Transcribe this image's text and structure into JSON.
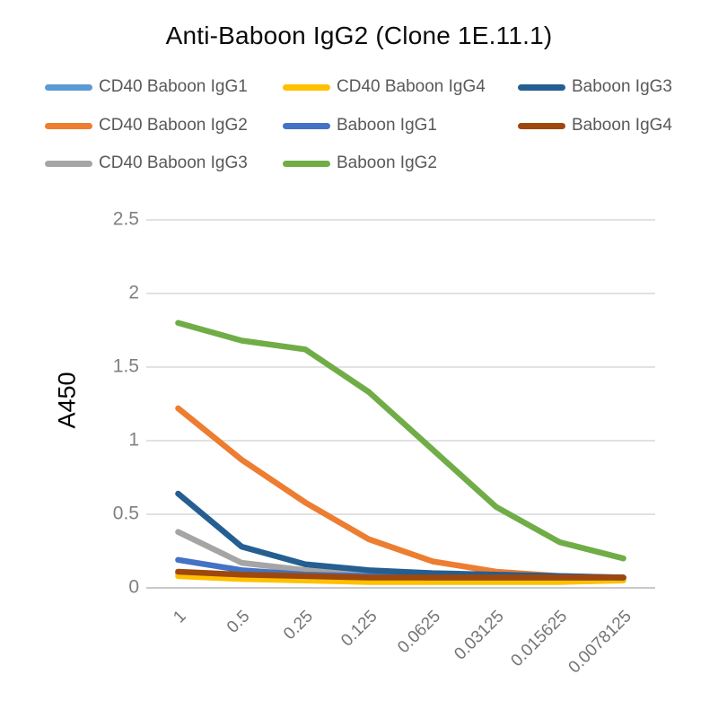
{
  "chart_data": {
    "type": "line",
    "title": "Anti-Baboon IgG2 (Clone 1E.11.1)",
    "xlabel": "",
    "ylabel": "A450",
    "ylim": [
      0,
      2.5
    ],
    "y_ticks": [
      0,
      0.5,
      1,
      1.5,
      2,
      2.5
    ],
    "y_tick_labels": [
      "0",
      "0.5",
      "1",
      "1.5",
      "2",
      "2.5"
    ],
    "categories": [
      "1",
      "0.5",
      "0.25",
      "0.125",
      "0.0625",
      "0.03125",
      "0.015625",
      "0.0078125"
    ],
    "grid": "horizontal",
    "legend_position": "top",
    "legend_columns": 3,
    "series": [
      {
        "name": "CD40 Baboon IgG1",
        "color": "#5B9BD5",
        "values": [
          0.1,
          0.08,
          0.07,
          0.06,
          0.06,
          0.06,
          0.06,
          0.06
        ]
      },
      {
        "name": "CD40 Baboon IgG2",
        "color": "#ED7D31",
        "values": [
          1.22,
          0.87,
          0.58,
          0.33,
          0.18,
          0.11,
          0.08,
          0.07
        ]
      },
      {
        "name": "CD40 Baboon IgG3",
        "color": "#A5A5A5",
        "values": [
          0.38,
          0.17,
          0.12,
          0.1,
          0.08,
          0.08,
          0.07,
          0.07
        ]
      },
      {
        "name": "CD40 Baboon IgG4",
        "color": "#FFC000",
        "values": [
          0.08,
          0.06,
          0.05,
          0.04,
          0.04,
          0.04,
          0.04,
          0.05
        ]
      },
      {
        "name": "Baboon IgG1",
        "color": "#4472C4",
        "values": [
          0.19,
          0.12,
          0.09,
          0.08,
          0.07,
          0.07,
          0.07,
          0.07
        ]
      },
      {
        "name": "Baboon IgG2",
        "color": "#70AD47",
        "values": [
          1.8,
          1.68,
          1.62,
          1.33,
          0.94,
          0.55,
          0.31,
          0.2
        ]
      },
      {
        "name": "Baboon IgG3",
        "color": "#255E91",
        "values": [
          0.64,
          0.28,
          0.16,
          0.12,
          0.1,
          0.09,
          0.08,
          0.07
        ]
      },
      {
        "name": "Baboon IgG4",
        "color": "#9E480E",
        "values": [
          0.11,
          0.09,
          0.08,
          0.07,
          0.07,
          0.07,
          0.07,
          0.07
        ]
      }
    ],
    "colors": {
      "gridline": "#D9D9D9",
      "axis_line": "#C9C9C9",
      "y_tick_label": "#808080",
      "x_tick_label": "#757575",
      "legend_text": "#595959",
      "title_text": "#0A0A0A",
      "background": "#FFFFFF"
    }
  }
}
